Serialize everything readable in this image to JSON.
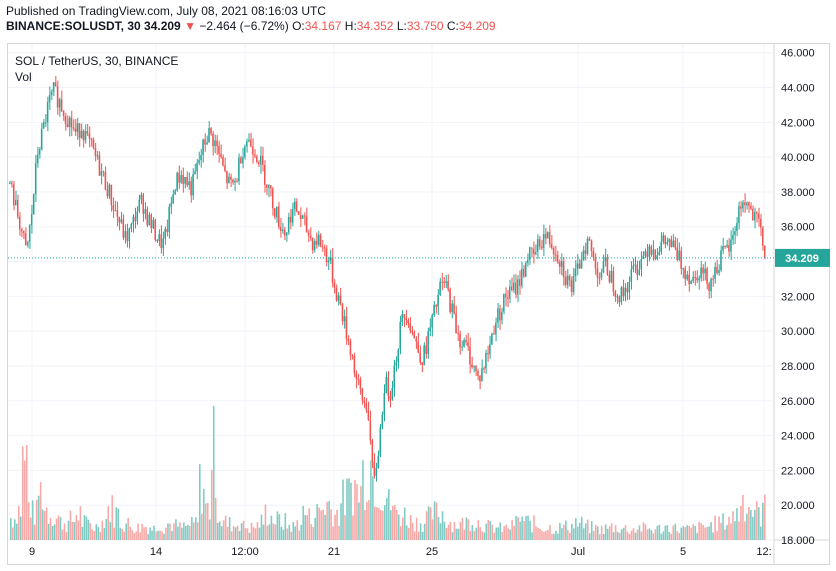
{
  "header": {
    "published": "Published on TradingView.com, July 08, 2021 08:16:03 UTC",
    "symbol": "BINANCE:SOLUSDT, 30",
    "last": "34.209",
    "arrow": "▼",
    "change": "−2.464 (−6.72%)",
    "o_label": "O:",
    "o_value": "34.167",
    "h_label": "H:",
    "h_value": "34.352",
    "l_label": "L:",
    "l_value": "33.750",
    "c_label": "C:",
    "c_value": "34.209"
  },
  "legend": {
    "title": "SOL / TetherUS, 30, BINANCE",
    "volume_label": "Vol"
  },
  "colors": {
    "up": "#26a69a",
    "down": "#ef5350",
    "up_vol": "#80cbc4",
    "down_vol": "#f7a9a7",
    "last_price_line": "#26a69a",
    "grid": "#f0f3fa",
    "axis_text": "#131722"
  },
  "chart_data": {
    "type": "candlestick",
    "grid": true,
    "ylim": [
      18,
      46.5
    ],
    "y_ticks": [
      "46.000",
      "44.000",
      "42.000",
      "40.000",
      "38.000",
      "36.000",
      "34.000",
      "32.000",
      "30.000",
      "28.000",
      "26.000",
      "24.000",
      "22.000",
      "20.000",
      "18.000"
    ],
    "x_ticks": [
      "9",
      "14",
      "12:00",
      "21",
      "25",
      "Jul",
      "5",
      "12:"
    ],
    "last_price_label": "34.209",
    "last_price": 34.209,
    "price_path_close": [
      38.5,
      37.2,
      36.0,
      34.4,
      36.8,
      40.2,
      41.5,
      43.0,
      43.8,
      43.2,
      42.5,
      42.0,
      41.3,
      41.8,
      41.0,
      40.4,
      39.6,
      38.8,
      38.0,
      37.0,
      36.2,
      35.3,
      35.8,
      36.9,
      37.5,
      36.5,
      35.9,
      35.2,
      35.0,
      36.8,
      38.5,
      39.0,
      38.6,
      38.2,
      39.4,
      40.5,
      41.4,
      41.0,
      40.1,
      39.0,
      38.3,
      38.6,
      40.3,
      41.0,
      40.7,
      40.1,
      39.2,
      38.2,
      37.1,
      36.2,
      35.6,
      36.8,
      37.0,
      36.4,
      35.7,
      35.1,
      35.3,
      34.7,
      34.0,
      32.5,
      31.5,
      30.0,
      28.8,
      27.0,
      26.0,
      25.6,
      21.0,
      23.5,
      27.0,
      26.5,
      28.3,
      30.5,
      31.2,
      30.0,
      29.0,
      28.4,
      29.8,
      31.0,
      32.4,
      32.8,
      31.5,
      30.2,
      29.3,
      29.0,
      28.1,
      27.2,
      28.0,
      29.1,
      30.5,
      31.2,
      32.0,
      32.2,
      32.6,
      33.3,
      34.4,
      34.2,
      35.0,
      35.5,
      35.2,
      34.7,
      34.0,
      33.0,
      32.5,
      33.4,
      34.8,
      35.2,
      34.0,
      33.3,
      33.8,
      33.2,
      32.4,
      32.0,
      32.6,
      33.4,
      33.8,
      34.4,
      35.0,
      34.6,
      34.9,
      35.1,
      35.0,
      34.4,
      33.8,
      33.3,
      33.0,
      33.6,
      33.2,
      32.8,
      33.5,
      34.2,
      34.6,
      35.0,
      36.6,
      37.5,
      37.2,
      36.4,
      36.1,
      34.209
    ],
    "volume": {
      "note": "relative volume bars, spikes near 12:00 and 21-22",
      "relative_values": [
        0.25,
        0.35,
        0.9,
        0.4,
        0.3,
        0.55,
        0.35,
        0.3,
        0.25,
        0.2,
        0.18,
        0.22,
        0.3,
        0.2,
        0.18,
        0.15,
        0.2,
        0.25,
        0.35,
        0.3,
        0.2,
        0.18,
        0.15,
        0.14,
        0.16,
        0.15,
        0.13,
        0.2,
        0.15,
        0.18,
        0.16,
        0.14,
        0.15,
        0.17,
        0.2,
        0.6,
        0.35,
        1.0,
        0.3,
        0.2,
        0.18,
        0.16,
        0.2,
        0.15,
        0.14,
        0.16,
        0.2,
        0.3,
        0.25,
        0.22,
        0.2,
        0.16,
        0.15,
        0.2,
        0.3,
        0.25,
        0.3,
        0.35,
        0.4,
        0.35,
        0.3,
        0.45,
        0.5,
        0.6,
        0.55,
        0.75,
        0.9,
        0.7,
        0.6,
        0.5,
        0.4,
        0.3,
        0.28,
        0.25,
        0.22,
        0.2,
        0.2,
        0.25,
        0.3,
        0.3,
        0.25,
        0.2,
        0.18,
        0.18,
        0.2,
        0.22,
        0.2,
        0.18,
        0.15,
        0.14,
        0.13,
        0.13,
        0.15,
        0.2,
        0.25,
        0.2,
        0.18,
        0.16,
        0.15,
        0.14,
        0.13,
        0.14,
        0.15,
        0.16,
        0.2,
        0.18,
        0.15,
        0.14,
        0.13,
        0.12,
        0.13,
        0.15,
        0.14,
        0.13,
        0.12,
        0.12,
        0.14,
        0.13,
        0.12,
        0.12,
        0.13,
        0.14,
        0.15,
        0.13,
        0.12,
        0.12,
        0.13,
        0.14,
        0.15,
        0.16,
        0.18,
        0.2,
        0.22,
        0.25,
        0.3,
        0.45,
        0.4,
        0.35,
        0.3,
        0.35
      ]
    }
  }
}
